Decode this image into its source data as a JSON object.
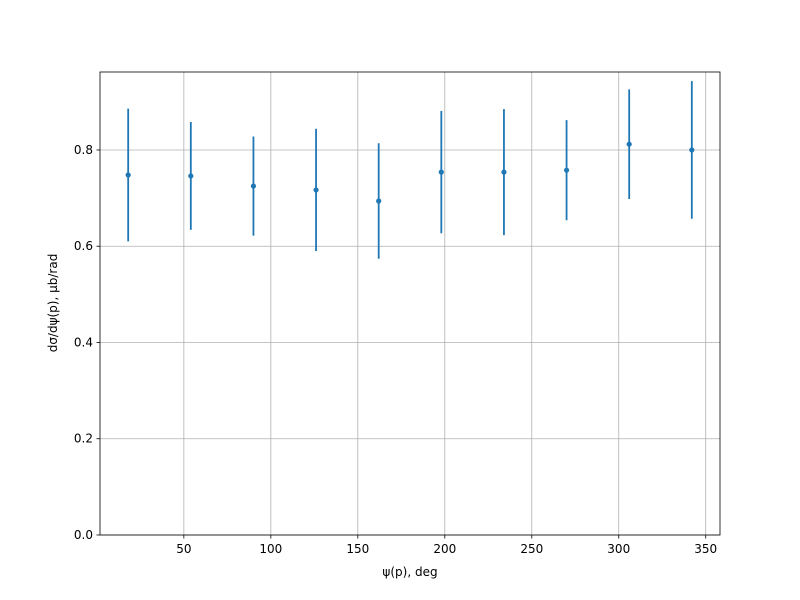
{
  "chart_data": {
    "type": "errorbar",
    "x_label": "ψ(p), deg",
    "y_label": "dσ/dψ(p), μb/rad",
    "x": [
      18,
      54,
      90,
      126,
      162,
      198,
      234,
      270,
      306,
      342
    ],
    "series": [
      {
        "color": "#1f77b4",
        "values": [
          0.748,
          0.746,
          0.725,
          0.717,
          0.694,
          0.754,
          0.754,
          0.758,
          0.812,
          0.8
        ],
        "errors": [
          0.138,
          0.112,
          0.103,
          0.127,
          0.12,
          0.127,
          0.131,
          0.104,
          0.114,
          0.143
        ]
      }
    ],
    "xlim": [
      1.8,
      358.2
    ],
    "ylim": [
      0,
      0.962
    ],
    "xticks": [
      50,
      100,
      150,
      200,
      250,
      300,
      350
    ],
    "yticks": [
      {
        "value": 0,
        "label": "0.0"
      },
      0.2,
      0.4,
      0.6,
      0.8
    ],
    "grid": true
  }
}
